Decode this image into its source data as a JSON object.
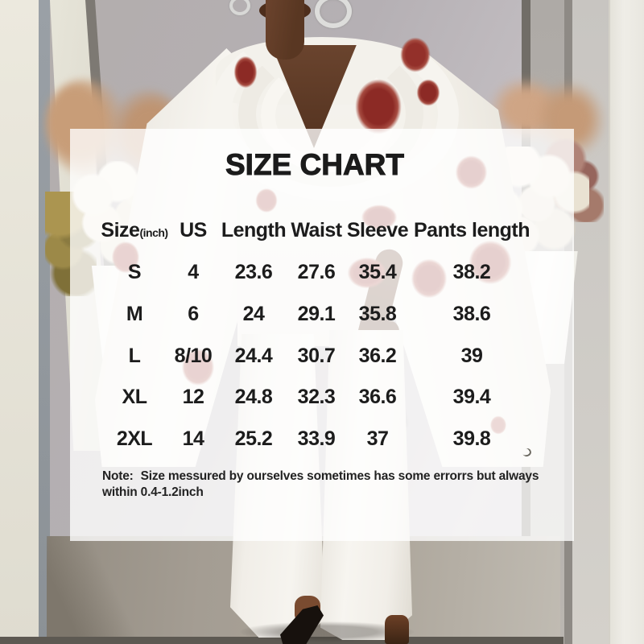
{
  "chart_data": {
    "type": "table",
    "title": "SIZE CHART",
    "size_unit": "(inch)",
    "columns": [
      "Size",
      "US",
      "Length",
      "Waist",
      "Sleeve",
      "Pants length"
    ],
    "rows": [
      [
        "S",
        "4",
        "23.6",
        "27.6",
        "35.4",
        "38.2"
      ],
      [
        "M",
        "6",
        "24",
        "29.1",
        "35.8",
        "38.6"
      ],
      [
        "L",
        "8/10",
        "24.4",
        "30.7",
        "36.2",
        "39"
      ],
      [
        "XL",
        "12",
        "24.8",
        "32.3",
        "36.6",
        "39.4"
      ],
      [
        "2XL",
        "14",
        "25.2",
        "33.9",
        "37",
        "39.8"
      ]
    ],
    "note_label": "Note:",
    "note_text": "Size messured by ourselves sometimes has some errorrs but always within 0.4-1.2inch"
  },
  "colors": {
    "overlay_panel": "#ffffff",
    "chart_text": "#1b1b1b",
    "floral_red": "#8c2a25",
    "garment_white": "#f5f3ee",
    "skin_brown": "#5f3c28",
    "wall_gray": "#b7b2b4",
    "floor_taupe": "#a29b91"
  }
}
